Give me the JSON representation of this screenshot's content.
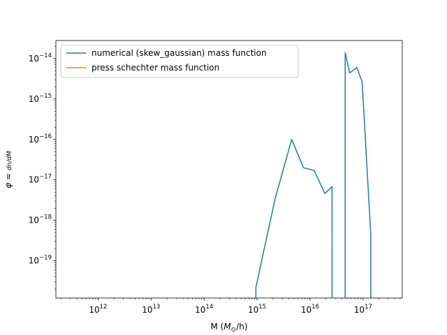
{
  "chart_data": {
    "type": "line",
    "xscale": "log",
    "yscale": "log",
    "xlim": [
      160000000000.0,
      5.5e+17
    ],
    "ylim": [
      1.2e-20,
      2.8e-14
    ],
    "xlabel": "M (M⊙/h)",
    "ylabel": "φ = dn/dM",
    "x_ticks": [
      {
        "value": 1000000000000.0,
        "base": "10",
        "exp": "12"
      },
      {
        "value": 10000000000000.0,
        "base": "10",
        "exp": "13"
      },
      {
        "value": 100000000000000.0,
        "base": "10",
        "exp": "14"
      },
      {
        "value": 1000000000000000.0,
        "base": "10",
        "exp": "15"
      },
      {
        "value": 1e+16,
        "base": "10",
        "exp": "16"
      },
      {
        "value": 1e+17,
        "base": "10",
        "exp": "17"
      }
    ],
    "y_ticks": [
      {
        "value": 1e-19,
        "base": "10",
        "exp": "−19"
      },
      {
        "value": 1e-18,
        "base": "10",
        "exp": "−18"
      },
      {
        "value": 1e-17,
        "base": "10",
        "exp": "−17"
      },
      {
        "value": 1e-16,
        "base": "10",
        "exp": "−16"
      },
      {
        "value": 1e-15,
        "base": "10",
        "exp": "−15"
      },
      {
        "value": 1e-14,
        "base": "10",
        "exp": "−14"
      }
    ],
    "legend_position": "upper-left",
    "series": [
      {
        "name": "numerical (skew_gaussian) mass function",
        "color": "#1f77b4",
        "x": [
          950000000000000.0,
          950000000000000.0,
          2200000000000000.0,
          4500000000000000.0,
          7500000000000000.0,
          1.2e+16,
          1.9e+16,
          2.6e+16,
          2.6e+16,
          4.6e+16,
          4.6e+16,
          5.6e+16,
          7.6e+16,
          9.6e+16,
          1.4e+17,
          1.4e+17
        ],
        "y": [
          1e-25,
          2.2e-20,
          3.5e-18,
          1e-16,
          2e-17,
          1.7e-17,
          4.6e-18,
          6.8e-18,
          1e-25,
          1e-25,
          1.4e-14,
          4.4e-15,
          6e-15,
          2.7e-15,
          4.3e-19,
          1e-25
        ]
      },
      {
        "name": "press schechter mass function",
        "color": "#ff7f0e",
        "x": [],
        "y": []
      }
    ]
  }
}
